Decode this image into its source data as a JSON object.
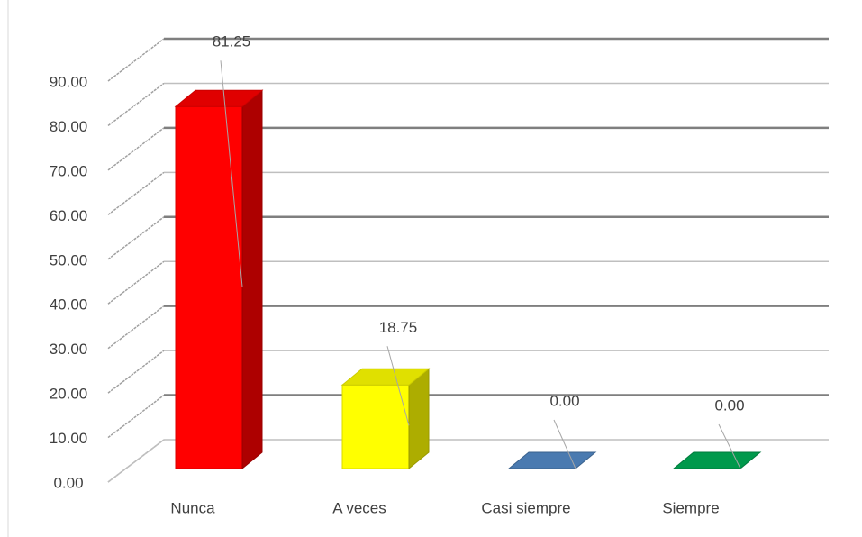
{
  "chart_data": {
    "type": "bar3d",
    "categories": [
      "Nunca",
      "A veces",
      "Casi siempre",
      "Siempre"
    ],
    "values": [
      81.25,
      18.75,
      0,
      0
    ],
    "value_labels": [
      "81.25",
      "18.75",
      "0.00",
      "0.00"
    ],
    "colors": [
      "#ff0000",
      "#ffff00",
      "#4a7ab0",
      "#00994c"
    ],
    "ylim": [
      0,
      90
    ],
    "yticks": [
      {
        "value": 0,
        "label": "0.00"
      },
      {
        "value": 10,
        "label": "10.00"
      },
      {
        "value": 20,
        "label": "20.00"
      },
      {
        "value": 30,
        "label": "30.00"
      },
      {
        "value": 40,
        "label": "40.00"
      },
      {
        "value": 50,
        "label": "50.00"
      },
      {
        "value": 60,
        "label": "60.00"
      },
      {
        "value": 70,
        "label": "70.00"
      },
      {
        "value": 80,
        "label": "80.00"
      },
      {
        "value": 90,
        "label": "90.00"
      }
    ],
    "grid": true
  }
}
